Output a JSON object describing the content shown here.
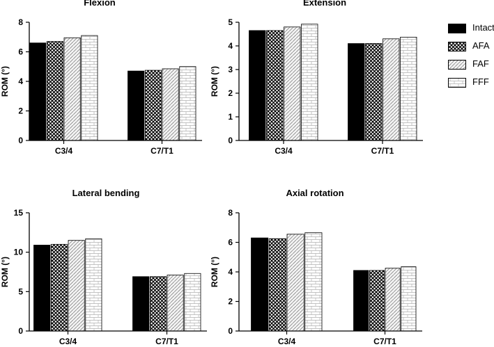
{
  "series_styles": [
    {
      "name": "Intact",
      "pattern": "solid",
      "fill": "#000000"
    },
    {
      "name": "AFA",
      "pattern": "crosshatch",
      "fill": "#555555"
    },
    {
      "name": "FAF",
      "pattern": "diagonal",
      "fill": "#dddddd"
    },
    {
      "name": "FFF",
      "pattern": "brick",
      "fill": "#ffffff"
    }
  ],
  "legend": [
    "Intact",
    "AFA",
    "FAF",
    "FFF"
  ],
  "chart_data": [
    {
      "type": "bar",
      "title": "Flexion",
      "xlabel": "",
      "ylabel": "ROM (°)",
      "categories": [
        "C3/4",
        "C7/T1"
      ],
      "ylim": [
        0,
        8
      ],
      "yticks": [
        0,
        2,
        4,
        6,
        8
      ],
      "series": [
        {
          "name": "Intact",
          "values": [
            6.6,
            4.7
          ]
        },
        {
          "name": "AFA",
          "values": [
            6.7,
            4.75
          ]
        },
        {
          "name": "FAF",
          "values": [
            6.95,
            4.85
          ]
        },
        {
          "name": "FFF",
          "values": [
            7.1,
            5.0
          ]
        }
      ]
    },
    {
      "type": "bar",
      "title": "Extension",
      "xlabel": "",
      "ylabel": "ROM (°)",
      "categories": [
        "C3/4",
        "C7/T1"
      ],
      "ylim": [
        0,
        5
      ],
      "yticks": [
        0,
        1,
        2,
        3,
        4,
        5
      ],
      "series": [
        {
          "name": "Intact",
          "values": [
            4.65,
            4.1
          ]
        },
        {
          "name": "AFA",
          "values": [
            4.65,
            4.1
          ]
        },
        {
          "name": "FAF",
          "values": [
            4.8,
            4.3
          ]
        },
        {
          "name": "FFF",
          "values": [
            4.92,
            4.37
          ]
        }
      ]
    },
    {
      "type": "bar",
      "title": "Lateral bending",
      "xlabel": "",
      "ylabel": "ROM (°)",
      "categories": [
        "C3/4",
        "C7/T1"
      ],
      "ylim": [
        0,
        15
      ],
      "yticks": [
        0,
        5,
        10,
        15
      ],
      "series": [
        {
          "name": "Intact",
          "values": [
            10.9,
            6.9
          ]
        },
        {
          "name": "AFA",
          "values": [
            11.0,
            6.9
          ]
        },
        {
          "name": "FAF",
          "values": [
            11.5,
            7.1
          ]
        },
        {
          "name": "FFF",
          "values": [
            11.7,
            7.3
          ]
        }
      ]
    },
    {
      "type": "bar",
      "title": "Axial rotation",
      "xlabel": "",
      "ylabel": "ROM (°)",
      "categories": [
        "C3/4",
        "C7/T1"
      ],
      "ylim": [
        0,
        8
      ],
      "yticks": [
        0,
        2,
        4,
        6,
        8
      ],
      "series": [
        {
          "name": "Intact",
          "values": [
            6.3,
            4.1
          ]
        },
        {
          "name": "AFA",
          "values": [
            6.25,
            4.1
          ]
        },
        {
          "name": "FAF",
          "values": [
            6.55,
            4.25
          ]
        },
        {
          "name": "FFF",
          "values": [
            6.65,
            4.35
          ]
        }
      ]
    }
  ]
}
